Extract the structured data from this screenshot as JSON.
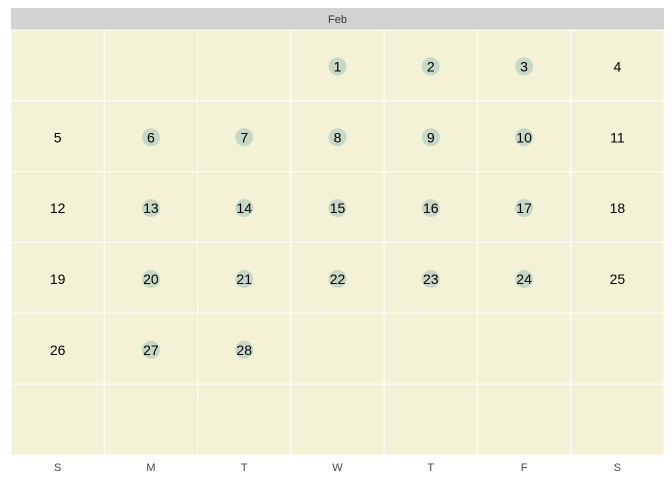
{
  "chart_data": {
    "type": "heatmap",
    "month": "Feb",
    "weekdays": [
      "S",
      "M",
      "T",
      "W",
      "T",
      "F",
      "S"
    ],
    "first_weekday_index": 3,
    "days_in_month": 28,
    "weeks_shown": 6,
    "highlighted_days": [
      1,
      2,
      3,
      6,
      7,
      8,
      9,
      10,
      13,
      14,
      15,
      16,
      17,
      20,
      21,
      22,
      23,
      24,
      27,
      28
    ],
    "grid": "on"
  },
  "colors": {
    "cell_fill": "#f3f2d7",
    "grid_line": "#ffffff",
    "header_fill": "#d2d2d2",
    "highlight_circle": "#c7d8c6",
    "text": "#000000"
  }
}
